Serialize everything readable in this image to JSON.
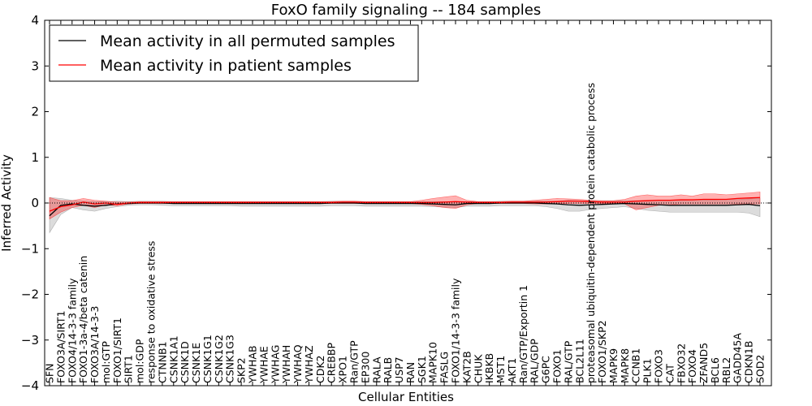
{
  "chart_data": {
    "type": "line",
    "title": "FoxO family signaling -- 184 samples",
    "xlabel": "Cellular Entities",
    "ylabel": "Inferred Activity",
    "ylim": [
      -4,
      4
    ],
    "yticks": [
      "4",
      "3",
      "2",
      "1",
      "0",
      "−1",
      "−2",
      "−3",
      "−4"
    ],
    "ytick_values": [
      4,
      3,
      2,
      1,
      0,
      -1,
      -2,
      -3,
      -4
    ],
    "legend": {
      "placement": "top-left",
      "entries": [
        {
          "label": "Mean activity in all permuted samples",
          "color": "#000000"
        },
        {
          "label": "Mean activity in patient samples",
          "color": "#ff0000"
        }
      ]
    },
    "categories": [
      "SFN",
      "FOXO3A/SIRT1",
      "FOXO4/14-3-3 family",
      "FOXO1-3a-4/beta catenin",
      "FOXO3A/14-3-3",
      "mol:GTP",
      "FOXO1/SIRT1",
      "SIRT1",
      "mol:GDP",
      "response to oxidative stress",
      "CTNNB1",
      "CSNK1A1",
      "CSNK1D",
      "CSNK1E",
      "CSNK1G1",
      "CSNK1G2",
      "CSNK1G3",
      "SKP2",
      "YWHAB",
      "YWHAE",
      "YWHAG",
      "YWHAH",
      "YWHAQ",
      "YWHAZ",
      "CDK2",
      "CREBBP",
      "XPO1",
      "Ran/GTP",
      "EP300",
      "RALA",
      "RALB",
      "USP7",
      "RAN",
      "SGK1",
      "MAPK10",
      "FASLG",
      "FOXO1/14-3-3 family",
      "KAT2B",
      "CHUK",
      "IKBKB",
      "MST1",
      "AKT1",
      "Ran/GTP/Exportin 1",
      "RAL/GDP",
      "G6PC",
      "FOXO1",
      "RAL/GTP",
      "BCL2L11",
      "proteasomal ubiquitin-dependent protein catabolic process",
      "FOXO1/SKP2",
      "MAPK9",
      "MAPK8",
      "CCNB1",
      "PLK1",
      "FOXO3",
      "CAT",
      "FBXO32",
      "FOXO4",
      "ZFAND5",
      "BCL6",
      "RBL2",
      "GADD45A",
      "CDKN1B",
      "SOD2"
    ],
    "series": [
      {
        "name": "Mean activity in all permuted samples",
        "color": "#000000",
        "values": [
          -0.28,
          -0.05,
          -0.02,
          -0.05,
          -0.07,
          -0.05,
          -0.02,
          -0.01,
          0.0,
          0.0,
          0.0,
          -0.01,
          -0.01,
          -0.01,
          -0.01,
          -0.01,
          -0.01,
          -0.01,
          -0.01,
          -0.01,
          -0.01,
          -0.01,
          -0.01,
          -0.01,
          -0.01,
          0.0,
          0.0,
          0.0,
          -0.01,
          -0.01,
          -0.01,
          -0.01,
          -0.01,
          -0.01,
          -0.02,
          -0.03,
          -0.04,
          -0.01,
          -0.01,
          -0.01,
          0.0,
          0.0,
          0.0,
          0.0,
          -0.01,
          -0.02,
          -0.04,
          -0.05,
          -0.04,
          -0.03,
          -0.02,
          -0.01,
          -0.02,
          -0.03,
          -0.04,
          -0.05,
          -0.05,
          -0.05,
          -0.05,
          -0.05,
          -0.05,
          -0.04,
          -0.03,
          -0.06
        ],
        "band": [
          [
            -0.65,
            0.12
          ],
          [
            -0.25,
            0.1
          ],
          [
            -0.1,
            0.06
          ],
          [
            -0.15,
            0.04
          ],
          [
            -0.18,
            0.03
          ],
          [
            -0.12,
            0.03
          ],
          [
            -0.08,
            0.04
          ],
          [
            -0.05,
            0.03
          ],
          [
            -0.04,
            0.04
          ],
          [
            -0.04,
            0.04
          ],
          [
            -0.05,
            0.04
          ],
          [
            -0.06,
            0.03
          ],
          [
            -0.06,
            0.03
          ],
          [
            -0.06,
            0.03
          ],
          [
            -0.06,
            0.03
          ],
          [
            -0.06,
            0.03
          ],
          [
            -0.06,
            0.03
          ],
          [
            -0.07,
            0.03
          ],
          [
            -0.07,
            0.03
          ],
          [
            -0.07,
            0.03
          ],
          [
            -0.07,
            0.03
          ],
          [
            -0.07,
            0.03
          ],
          [
            -0.07,
            0.03
          ],
          [
            -0.07,
            0.03
          ],
          [
            -0.07,
            0.03
          ],
          [
            -0.06,
            0.04
          ],
          [
            -0.06,
            0.04
          ],
          [
            -0.06,
            0.04
          ],
          [
            -0.07,
            0.03
          ],
          [
            -0.07,
            0.03
          ],
          [
            -0.07,
            0.03
          ],
          [
            -0.07,
            0.03
          ],
          [
            -0.07,
            0.03
          ],
          [
            -0.07,
            0.03
          ],
          [
            -0.08,
            0.03
          ],
          [
            -0.09,
            0.03
          ],
          [
            -0.1,
            0.02
          ],
          [
            -0.07,
            0.03
          ],
          [
            -0.07,
            0.03
          ],
          [
            -0.07,
            0.03
          ],
          [
            -0.06,
            0.04
          ],
          [
            -0.06,
            0.04
          ],
          [
            -0.06,
            0.04
          ],
          [
            -0.06,
            0.04
          ],
          [
            -0.08,
            0.04
          ],
          [
            -0.12,
            0.04
          ],
          [
            -0.18,
            0.06
          ],
          [
            -0.18,
            0.05
          ],
          [
            -0.14,
            0.05
          ],
          [
            -0.12,
            0.05
          ],
          [
            -0.1,
            0.05
          ],
          [
            -0.08,
            0.05
          ],
          [
            -0.12,
            0.05
          ],
          [
            -0.16,
            0.06
          ],
          [
            -0.18,
            0.06
          ],
          [
            -0.2,
            0.06
          ],
          [
            -0.2,
            0.06
          ],
          [
            -0.2,
            0.07
          ],
          [
            -0.2,
            0.07
          ],
          [
            -0.2,
            0.07
          ],
          [
            -0.2,
            0.08
          ],
          [
            -0.2,
            0.08
          ],
          [
            -0.22,
            0.09
          ],
          [
            -0.3,
            0.1
          ]
        ]
      },
      {
        "name": "Mean activity in patient samples",
        "color": "#ff0000",
        "values": [
          -0.18,
          -0.08,
          -0.04,
          0.02,
          -0.02,
          0.0,
          -0.03,
          0.0,
          0.01,
          0.01,
          0.01,
          0.01,
          0.01,
          0.01,
          0.01,
          0.01,
          0.01,
          0.01,
          0.01,
          0.01,
          0.01,
          0.01,
          0.01,
          0.01,
          0.01,
          0.01,
          0.02,
          0.02,
          0.01,
          0.01,
          0.01,
          0.01,
          0.01,
          0.01,
          0.01,
          0.02,
          0.03,
          0.02,
          0.01,
          0.01,
          0.01,
          0.02,
          0.02,
          0.02,
          0.02,
          0.03,
          0.04,
          0.04,
          0.03,
          0.02,
          0.02,
          0.02,
          0.04,
          0.05,
          0.06,
          0.06,
          0.07,
          0.07,
          0.08,
          0.08,
          0.08,
          0.1,
          0.11,
          0.12
        ],
        "band": [
          [
            -0.35,
            0.12
          ],
          [
            -0.2,
            0.05
          ],
          [
            -0.1,
            0.05
          ],
          [
            -0.05,
            0.1
          ],
          [
            -0.1,
            0.06
          ],
          [
            -0.04,
            0.04
          ],
          [
            -0.06,
            0.02
          ],
          [
            -0.02,
            0.02
          ],
          [
            -0.01,
            0.03
          ],
          [
            -0.01,
            0.03
          ],
          [
            -0.01,
            0.03
          ],
          [
            -0.01,
            0.03
          ],
          [
            -0.01,
            0.03
          ],
          [
            -0.01,
            0.03
          ],
          [
            -0.01,
            0.03
          ],
          [
            -0.01,
            0.03
          ],
          [
            -0.01,
            0.03
          ],
          [
            -0.01,
            0.03
          ],
          [
            -0.01,
            0.03
          ],
          [
            -0.01,
            0.03
          ],
          [
            -0.01,
            0.03
          ],
          [
            -0.01,
            0.03
          ],
          [
            -0.01,
            0.03
          ],
          [
            -0.01,
            0.03
          ],
          [
            -0.01,
            0.03
          ],
          [
            -0.01,
            0.03
          ],
          [
            -0.01,
            0.04
          ],
          [
            -0.01,
            0.04
          ],
          [
            -0.01,
            0.03
          ],
          [
            -0.01,
            0.03
          ],
          [
            -0.01,
            0.03
          ],
          [
            -0.01,
            0.03
          ],
          [
            -0.01,
            0.03
          ],
          [
            -0.03,
            0.06
          ],
          [
            -0.06,
            0.1
          ],
          [
            -0.1,
            0.13
          ],
          [
            -0.12,
            0.16
          ],
          [
            -0.04,
            0.06
          ],
          [
            -0.01,
            0.03
          ],
          [
            -0.01,
            0.03
          ],
          [
            -0.01,
            0.03
          ],
          [
            -0.01,
            0.04
          ],
          [
            -0.01,
            0.04
          ],
          [
            -0.02,
            0.06
          ],
          [
            -0.02,
            0.08
          ],
          [
            -0.02,
            0.1
          ],
          [
            -0.01,
            0.09
          ],
          [
            -0.01,
            0.08
          ],
          [
            -0.01,
            0.06
          ],
          [
            -0.01,
            0.05
          ],
          [
            -0.01,
            0.05
          ],
          [
            -0.02,
            0.08
          ],
          [
            -0.15,
            0.15
          ],
          [
            -0.1,
            0.18
          ],
          [
            -0.05,
            0.15
          ],
          [
            -0.04,
            0.15
          ],
          [
            -0.02,
            0.18
          ],
          [
            -0.02,
            0.15
          ],
          [
            -0.02,
            0.2
          ],
          [
            -0.02,
            0.2
          ],
          [
            -0.02,
            0.18
          ],
          [
            -0.02,
            0.2
          ],
          [
            -0.02,
            0.22
          ],
          [
            -0.02,
            0.24
          ]
        ]
      }
    ]
  }
}
